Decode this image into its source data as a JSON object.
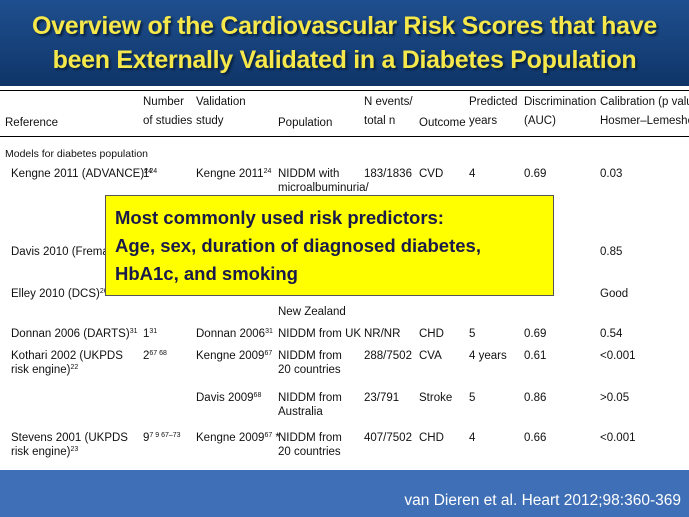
{
  "title": {
    "line1": "Overview of the Cardiovascular Risk Scores that have",
    "line2": "been Externally Validated in a Diabetes Population"
  },
  "table": {
    "headers": {
      "reference": "Reference",
      "studies_1": "Number",
      "studies_2": "of studies",
      "validation_1": "Validation",
      "validation_2": "study",
      "population": "Population",
      "nevents_1": "N events/",
      "nevents_2": "total n",
      "outcome": "Outcome",
      "predicted_1": "Predicted",
      "predicted_2": "years",
      "discrimination_1": "Discrimination",
      "discrimination_2": "(AUC)",
      "calibration_1": "Calibration (p value",
      "calibration_2": "Hosmer–Lemeshow)"
    },
    "section_label": "Models for diabetes population",
    "rows": {
      "advance": {
        "ref": "Kengne 2011 (ADVANCE)",
        "ref_sup": "24",
        "n": "1",
        "n_sup": "24",
        "val": "Kengne 2011",
        "val_sup": "24",
        "pop1": "NIDDM with",
        "pop2": "microalbuminuria/",
        "events": "183/1836",
        "outcome": "CVD",
        "years": "4",
        "auc": "0.69",
        "cal": "0.03"
      },
      "fremantle": {
        "ref": "Davis 2010 (Fremantle)",
        "cal": "0.85"
      },
      "dcs": {
        "ref": "Elley 2010 (DCS)",
        "ref_sup": "26",
        "pop": "New Zealand",
        "cal": "Good"
      },
      "darts": {
        "ref": "Donnan 2006 (DARTS)",
        "ref_sup": "31",
        "n": "1",
        "n_sup": "31",
        "val": "Donnan 2006",
        "val_sup": "31",
        "pop": "NIDDM from UK",
        "events": "NR/NR",
        "outcome": "CHD",
        "years": "5",
        "auc": "0.69",
        "cal": "0.54"
      },
      "kothari": {
        "ref1": "Kothari 2002 (UKPDS",
        "ref2": "risk engine)",
        "ref_sup": "22",
        "n": "2",
        "n_sup": "67 68",
        "val": "Kengne 2009",
        "val_sup": "67",
        "pop1": "NIDDM from",
        "pop2": "20 countries",
        "events": "288/7502",
        "outcome": "CVA",
        "years": "4 years",
        "auc": "0.61",
        "cal": "<0.001"
      },
      "davis2009": {
        "val": "Davis 2009",
        "val_sup": "68",
        "pop1": "NIDDM from",
        "pop2": "Australia",
        "events": "23/791",
        "outcome": "Stroke",
        "years": "5",
        "auc": "0.86",
        "cal": ">0.05"
      },
      "stevens": {
        "ref1": "Stevens 2001 (UKPDS",
        "ref2": "risk engine)",
        "ref_sup": "23",
        "n": "9",
        "n_sup": "7 9 67–73",
        "val": "Kengne 2009",
        "val_sup": "67",
        "val_suffix": " *",
        "pop1": "NIDDM from",
        "pop2": "20 countries",
        "events": "407/7502",
        "outcome": "CHD",
        "years": "4",
        "auc": "0.66",
        "cal": "<0.001"
      }
    }
  },
  "callout": {
    "line1": "Most commonly used risk predictors:",
    "line2": "Age, sex, duration of diagnosed diabetes,",
    "line3": "HbA1c, and smoking"
  },
  "citation": "van Dieren et al. Heart 2012;98:360-369"
}
